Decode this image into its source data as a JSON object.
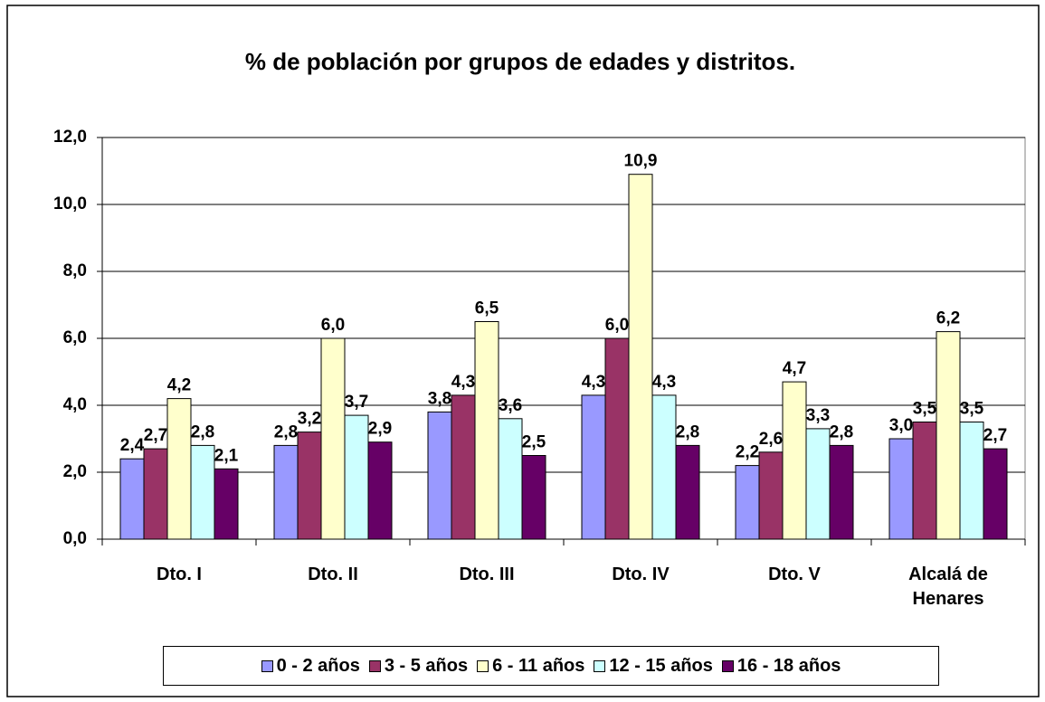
{
  "chart_data": {
    "type": "bar",
    "title": "% de población por grupos de edades y distritos.",
    "categories": [
      "Dto. I",
      "Dto. II",
      "Dto. III",
      "Dto. IV",
      "Dto. V",
      "Alcalá de Henares"
    ],
    "series": [
      {
        "name": "0 - 2 años",
        "color": "#9999ff",
        "values": [
          2.4,
          2.8,
          3.8,
          4.3,
          2.2,
          3.0
        ],
        "value_labels": [
          "2,4",
          "2,8",
          "3,8",
          "4,3",
          "2,2",
          "3,0"
        ]
      },
      {
        "name": "3 - 5 años",
        "color": "#993366",
        "values": [
          2.7,
          3.2,
          4.3,
          6.0,
          2.6,
          3.5
        ],
        "value_labels": [
          "2,7",
          "3,2",
          "4,3",
          "6,0",
          "2,6",
          "3,5"
        ]
      },
      {
        "name": "6 - 11 años",
        "color": "#ffffcc",
        "values": [
          4.2,
          6.0,
          6.5,
          10.9,
          4.7,
          6.2
        ],
        "value_labels": [
          "4,2",
          "6,0",
          "6,5",
          "10,9",
          "4,7",
          "6,2"
        ]
      },
      {
        "name": "12 - 15 años",
        "color": "#ccffff",
        "values": [
          2.8,
          3.7,
          3.6,
          4.3,
          3.3,
          3.5
        ],
        "value_labels": [
          "2,8",
          "3,7",
          "3,6",
          "4,3",
          "3,3",
          "3,5"
        ]
      },
      {
        "name": "16 - 18 años",
        "color": "#660066",
        "values": [
          2.1,
          2.9,
          2.5,
          2.8,
          2.8,
          2.7
        ],
        "value_labels": [
          "2,1",
          "2,9",
          "2,5",
          "2,8",
          "2,8",
          "2,7"
        ]
      }
    ],
    "ylim": [
      0,
      12
    ],
    "yticks": [
      {
        "value": 0,
        "label": "0,0"
      },
      {
        "value": 2,
        "label": "2,0"
      },
      {
        "value": 4,
        "label": "4,0"
      },
      {
        "value": 6,
        "label": "6,0"
      },
      {
        "value": 8,
        "label": "8,0"
      },
      {
        "value": 10,
        "label": "10,0"
      },
      {
        "value": 12,
        "label": "12,0"
      }
    ],
    "grid": true,
    "legend": "bottom"
  }
}
